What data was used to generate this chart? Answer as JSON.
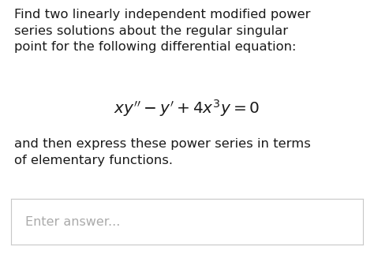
{
  "background_color": "#ffffff",
  "text_color": "#1a1a1a",
  "placeholder_color": "#aaaaaa",
  "paragraph1": "Find two linearly independent modified power\nseries solutions about the regular singular\npoint for the following differential equation:",
  "equation": "$xy'' - y' + 4x^3y = 0$",
  "paragraph2": "and then express these power series in terms\nof elementary functions.",
  "placeholder_text": "Enter answer...",
  "box_border_color": "#c8c8c8",
  "box_bg_color": "#ffffff",
  "font_size_body": 11.8,
  "font_size_equation": 14.5,
  "font_size_placeholder": 11.5
}
